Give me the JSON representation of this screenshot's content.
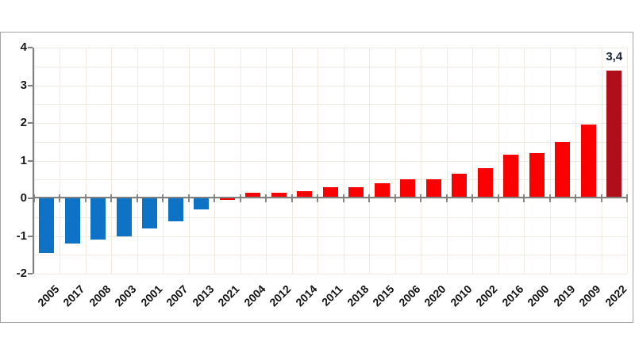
{
  "chart_data": {
    "type": "bar",
    "title": "",
    "xlabel": "",
    "ylabel": "",
    "categories": [
      "2005",
      "2017",
      "2008",
      "2003",
      "2001",
      "2007",
      "2013",
      "2021",
      "2004",
      "2012",
      "2014",
      "2011",
      "2018",
      "2015",
      "2006",
      "2020",
      "2010",
      "2002",
      "2016",
      "2000",
      "2019",
      "2009",
      "2022"
    ],
    "values": [
      -1.45,
      -1.2,
      -1.1,
      -1.0,
      -0.8,
      -0.6,
      -0.3,
      -0.05,
      0.15,
      0.15,
      0.2,
      0.3,
      0.3,
      0.4,
      0.5,
      0.5,
      0.65,
      0.8,
      1.15,
      1.2,
      1.5,
      1.95,
      3.4
    ],
    "bar_color_keys": [
      "blue",
      "blue",
      "blue",
      "blue",
      "blue",
      "blue",
      "blue",
      "red",
      "red",
      "red",
      "red",
      "red",
      "red",
      "red",
      "red",
      "red",
      "red",
      "red",
      "red",
      "red",
      "red",
      "red",
      "darkred"
    ],
    "palette": {
      "blue": "#0e72c5",
      "red": "#fb0000",
      "darkred": "#b00e1a"
    },
    "ylim": [
      -2,
      4
    ],
    "y_ticks": [
      -2,
      -1,
      0,
      1,
      2,
      3,
      4
    ],
    "y_tick_labels": [
      "-2",
      "-1",
      "0",
      "1",
      "2",
      "3",
      "4"
    ],
    "grid": true,
    "grid_step": 0.5,
    "legend": "none",
    "annotations": [
      {
        "category": "2022",
        "text": "3,4"
      }
    ]
  },
  "style": {
    "background": "#ffffff",
    "frame_border": "#a6a6a6",
    "gridline": "#efebe0",
    "axis_line": "#808080",
    "tick_label_color": "#1a1a1a",
    "data_label_color": "#1b2430"
  }
}
